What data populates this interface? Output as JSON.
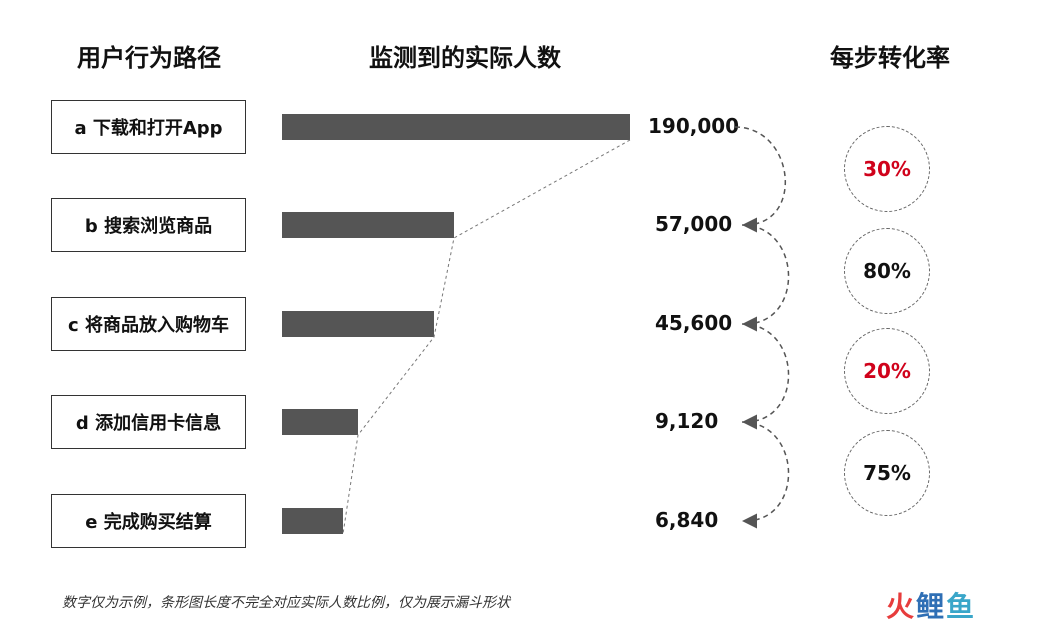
{
  "headers": {
    "path": "用户行为路径",
    "observed": "监测到的实际人数",
    "conversion": "每步转化率"
  },
  "chart_data": {
    "type": "bar",
    "orientation": "horizontal",
    "categories": [
      "a 下载和打开App",
      "b 搜索浏览商品",
      "c 将商品放入购物车",
      "d 添加信用卡信息",
      "e 完成购买结算"
    ],
    "values": [
      190000,
      57000,
      45600,
      9120,
      6840
    ],
    "value_labels": [
      "190,000",
      "57,000",
      "45,600",
      "9,120",
      "6,840"
    ],
    "conversion_rates": [
      {
        "label": "30%",
        "color": "#d0021b"
      },
      {
        "label": "80%",
        "color": "#111111"
      },
      {
        "label": "20%",
        "color": "#d0021b"
      },
      {
        "label": "75%",
        "color": "#111111"
      }
    ],
    "bar_color": "#555555",
    "grid": false
  },
  "footnote": "数字仅为示例，条形图长度不完全对应实际人数比例，仅为展示漏斗形状",
  "logo": {
    "part1": "火",
    "part2": "鲤",
    "part3": "鱼"
  }
}
